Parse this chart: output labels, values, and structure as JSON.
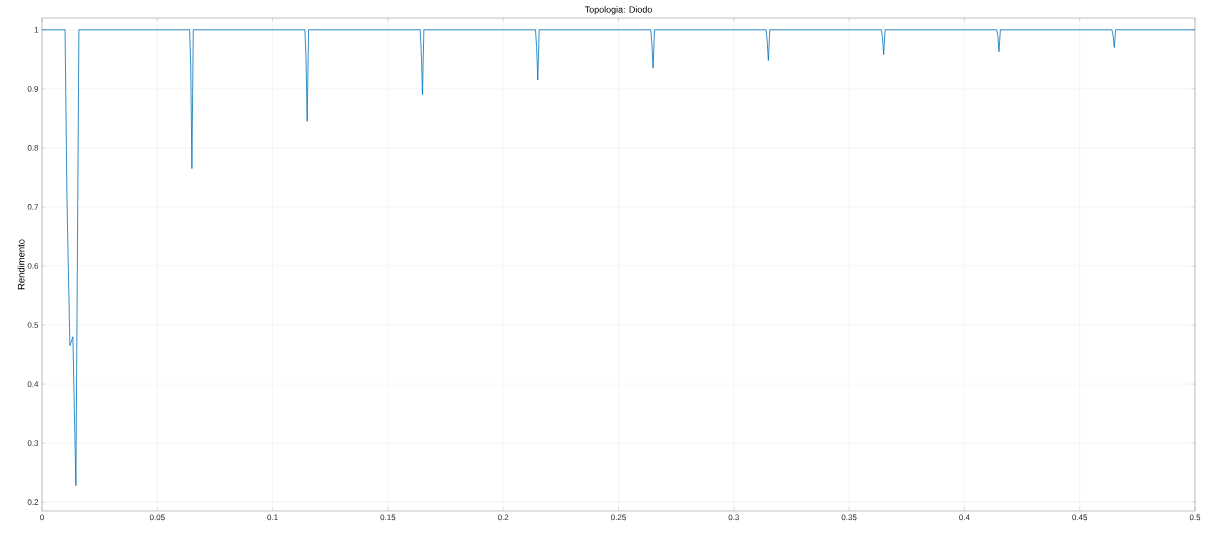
{
  "chart_data": {
    "type": "line",
    "title": "Topologia: Diodo",
    "ylabel": "Rendimento",
    "xlim": [
      0,
      0.5
    ],
    "ylim": [
      0.185,
      1.02
    ],
    "xticks": [
      0,
      0.05,
      0.1,
      0.15,
      0.2,
      0.25,
      0.3,
      0.35,
      0.4,
      0.45,
      0.5
    ],
    "yticks": [
      0.2,
      0.3,
      0.4,
      0.5,
      0.6,
      0.7,
      0.8,
      0.9,
      1
    ],
    "grid": true,
    "marker": "none",
    "line_style": "solid",
    "series": [
      {
        "color": "#0072bd",
        "x": [
          0,
          0.01,
          0.0108,
          0.0121,
          0.0134,
          0.0147,
          0.016,
          0.064,
          0.0645,
          0.065,
          0.0656,
          0.114,
          0.1145,
          0.115,
          0.1156,
          0.164,
          0.1645,
          0.165,
          0.1656,
          0.214,
          0.2145,
          0.215,
          0.2156,
          0.264,
          0.2645,
          0.265,
          0.2656,
          0.314,
          0.3145,
          0.315,
          0.3156,
          0.364,
          0.3645,
          0.365,
          0.3656,
          0.414,
          0.4145,
          0.415,
          0.4156,
          0.464,
          0.4645,
          0.465,
          0.4656,
          0.5
        ],
        "values": [
          1,
          1,
          0.72,
          0.465,
          0.48,
          0.228,
          1,
          1,
          0.94,
          0.765,
          1,
          1,
          0.95,
          0.845,
          1,
          1,
          0.96,
          0.89,
          1,
          1,
          0.97,
          0.915,
          1,
          1,
          0.975,
          0.935,
          1,
          1,
          0.98,
          0.948,
          1,
          1,
          0.985,
          0.958,
          1,
          1,
          0.99,
          0.963,
          1,
          1,
          0.99,
          0.97,
          1,
          1
        ]
      }
    ]
  }
}
